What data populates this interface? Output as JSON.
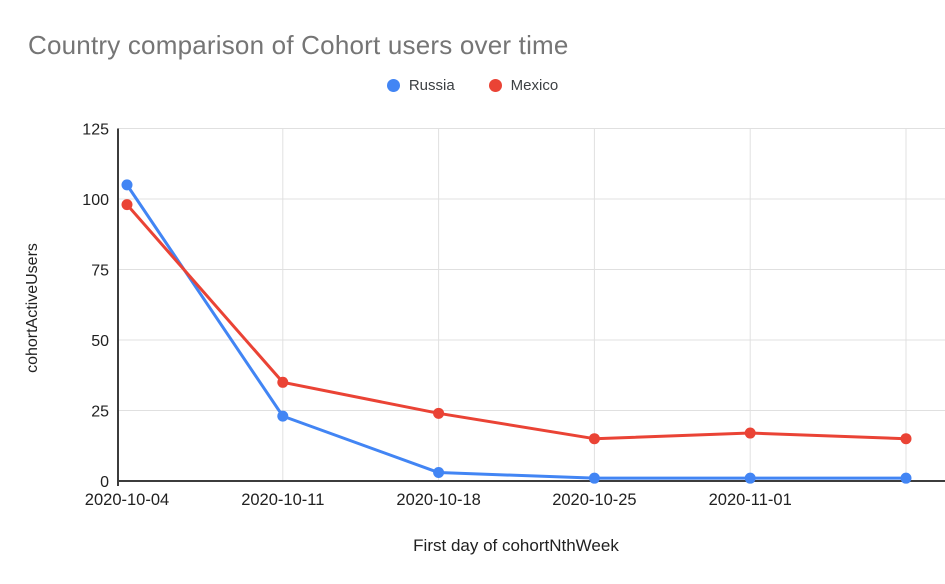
{
  "colors": {
    "background": "#ffffff",
    "title": "#757575",
    "axis_text": "#212121",
    "gridline": "#e0e0e0",
    "axis_line": "#3c3c3c",
    "russia": "#4285F4",
    "mexico": "#EA4335"
  },
  "chart_data": {
    "type": "line",
    "title": "Country comparison of Cohort users over time",
    "xlabel": "First day of cohortNthWeek",
    "ylabel": "cohortActiveUsers",
    "categories": [
      "2020-10-04",
      "2020-10-11",
      "2020-10-18",
      "2020-10-25",
      "2020-11-01",
      ""
    ],
    "series": [
      {
        "name": "Russia",
        "color": "#4285F4",
        "values": [
          105,
          23,
          3,
          1,
          1,
          1
        ]
      },
      {
        "name": "Mexico",
        "color": "#EA4335",
        "values": [
          98,
          35,
          24,
          15,
          17,
          15
        ]
      }
    ],
    "ylim": [
      0,
      125
    ],
    "yticks": [
      0,
      25,
      50,
      75,
      100,
      125
    ],
    "grid": true,
    "legend_position": "top",
    "marker": "circle"
  }
}
